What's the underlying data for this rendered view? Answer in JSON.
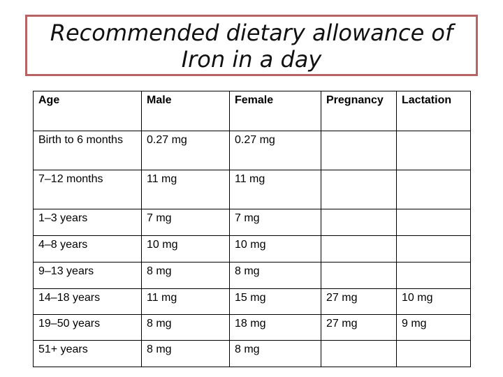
{
  "title": {
    "line1": "Recommended dietary allowance of",
    "line2": "Iron in a day"
  },
  "table": {
    "headers": [
      "Age",
      "Male",
      "Female",
      "Pregnancy",
      "Lactation"
    ],
    "rows": [
      [
        "Birth to 6 months",
        "0.27 mg",
        "0.27 mg",
        "",
        ""
      ],
      [
        "7–12 months",
        "11 mg",
        "11 mg",
        "",
        ""
      ],
      [
        "1–3 years",
        "7 mg",
        "7 mg",
        "",
        ""
      ],
      [
        "4–8 years",
        "10 mg",
        "10 mg",
        "",
        ""
      ],
      [
        "9–13 years",
        "8 mg",
        "8 mg",
        "",
        ""
      ],
      [
        "14–18 years",
        "11 mg",
        "15 mg",
        "27 mg",
        "10 mg"
      ],
      [
        "19–50 years",
        "8 mg",
        "18 mg",
        "27 mg",
        "9 mg"
      ],
      [
        "51+ years",
        "8 mg",
        "8 mg",
        "",
        ""
      ]
    ]
  },
  "colors": {
    "title_border": "#b86363",
    "table_border": "#000000"
  }
}
